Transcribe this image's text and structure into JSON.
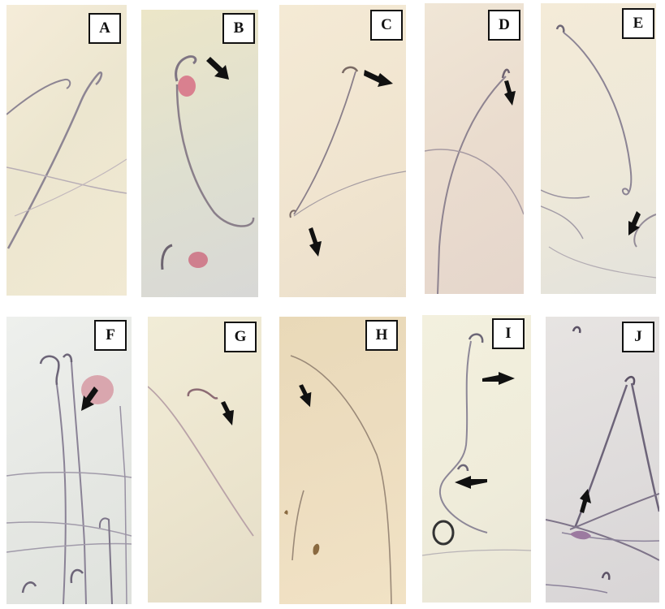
{
  "panels": [
    {
      "label": "A",
      "arrows": 0
    },
    {
      "label": "B",
      "arrows": 1
    },
    {
      "label": "C",
      "arrows": 2
    },
    {
      "label": "D",
      "arrows": 1
    },
    {
      "label": "E",
      "arrows": 1
    },
    {
      "label": "F",
      "arrows": 1
    },
    {
      "label": "G",
      "arrows": 1
    },
    {
      "label": "H",
      "arrows": 1
    },
    {
      "label": "I",
      "arrows": 2
    },
    {
      "label": "J",
      "arrows": 1
    }
  ],
  "colors": {
    "arrow": "#111111",
    "sperm": "#8a7f8a",
    "stain_pink": "#d9808f"
  },
  "icons": {
    "arrow": "black-block-arrow-icon"
  }
}
